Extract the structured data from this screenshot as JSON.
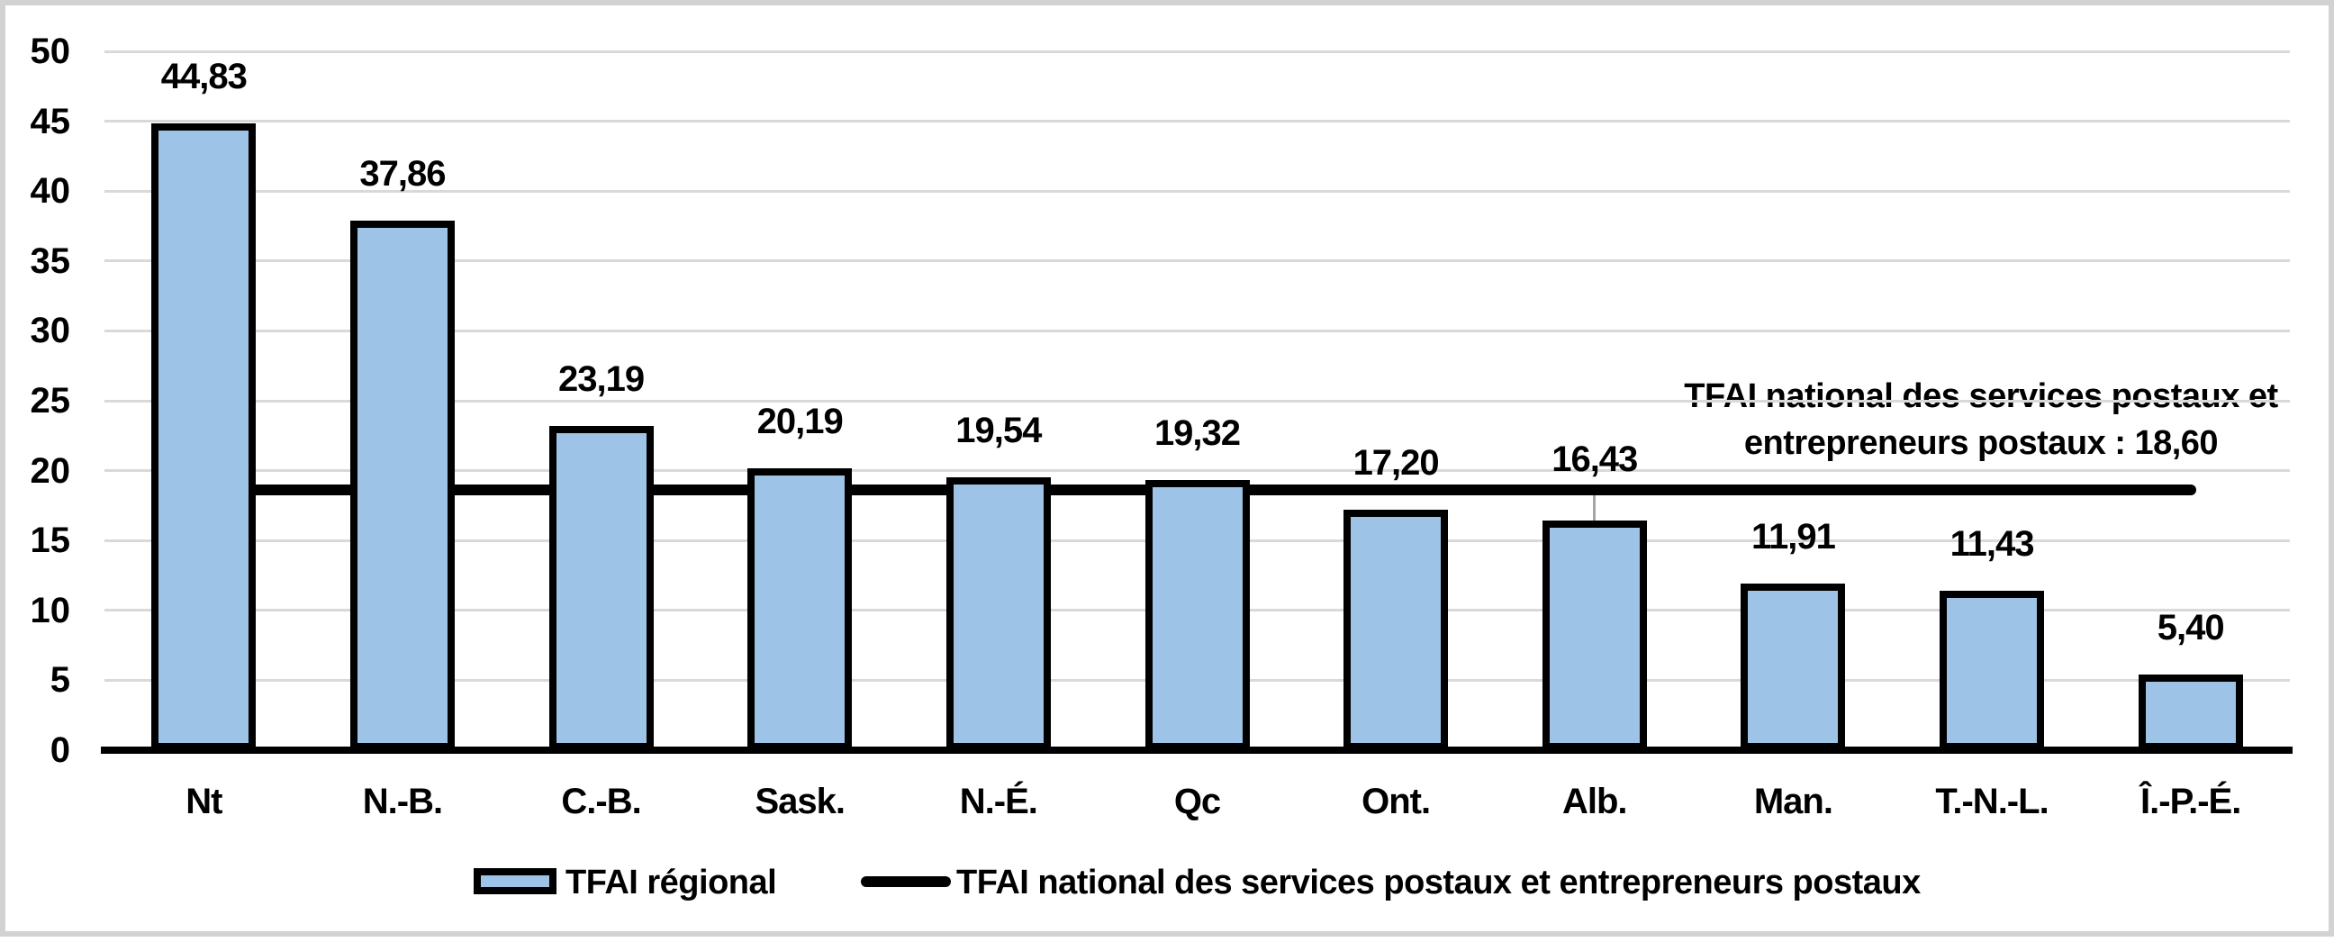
{
  "chart_data": {
    "type": "bar",
    "categories": [
      "Nt",
      "N.-B.",
      "C.-B.",
      "Sask.",
      "N.-É.",
      "Qc",
      "Ont.",
      "Alb.",
      "Man.",
      "T.-N.-L.",
      "Î.-P.-É."
    ],
    "values": [
      44.83,
      37.86,
      23.19,
      20.19,
      19.54,
      19.32,
      17.2,
      16.43,
      11.91,
      11.43,
      5.4
    ],
    "value_labels": [
      "44,83",
      "37,86",
      "23,19",
      "20,19",
      "19,54",
      "19,32",
      "17,20",
      "16,43",
      "11,91",
      "11,43",
      "5,40"
    ],
    "yticks": [
      "0",
      "5",
      "10",
      "15",
      "20",
      "25",
      "30",
      "35",
      "40",
      "45",
      "50"
    ],
    "ylim": [
      0,
      50
    ],
    "grid": true,
    "legend_position": "bottom",
    "reference_line": {
      "value": 18.6,
      "value_label": "18,60",
      "annotation_line1": "TFAI national des services postaux et",
      "annotation_line2": "entrepreneurs postaux : 18,60"
    },
    "label_leader_index": 7,
    "legend": [
      {
        "swatch": "bar",
        "label": "TFAI régional"
      },
      {
        "swatch": "line",
        "label": "TFAI national des services postaux et entrepreneurs postaux"
      }
    ],
    "colors": {
      "bar_fill": "#9dc3e6",
      "bar_border": "#000000",
      "reference_line": "#000000",
      "gridline": "#d9d9d9",
      "leader_line": "#a6a6a6",
      "frame_border": "#d2d2d2",
      "text": "#000000"
    }
  }
}
